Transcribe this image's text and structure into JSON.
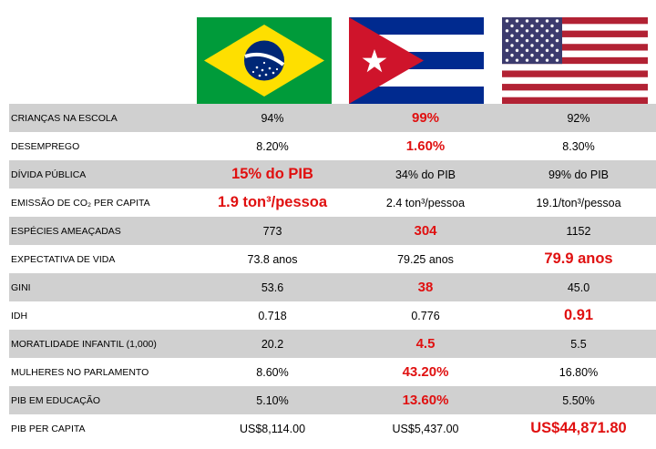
{
  "countries": [
    "Brasil",
    "Cuba",
    "Estados Unidos"
  ],
  "rows": [
    {
      "label": "CRIANÇAS NA ESCOLA",
      "values": [
        "94%",
        "99%",
        "92%"
      ],
      "highlight": 1
    },
    {
      "label": "DESEMPREGO",
      "values": [
        "8.20%",
        "1.60%",
        "8.30%"
      ],
      "highlight": 1
    },
    {
      "label": "DÍVIDA PÚBLICA",
      "values": [
        "15% do PIB",
        "34% do PIB",
        "99% do PIB"
      ],
      "highlight": 0
    },
    {
      "label": "EMISSÃO DE CO₂ PER CAPITA",
      "values": [
        "1.9 ton³/pessoa",
        "2.4 ton³/pessoa",
        "19.1/ton³/pessoa"
      ],
      "highlight": 0
    },
    {
      "label": "ESPÉCIES AMEAÇADAS",
      "values": [
        "773",
        "304",
        "1152"
      ],
      "highlight": 1
    },
    {
      "label": "EXPECTATIVA DE VIDA",
      "values": [
        "73.8 anos",
        "79.25 anos",
        "79.9 anos"
      ],
      "highlight": 2
    },
    {
      "label": "GINI",
      "values": [
        "53.6",
        "38",
        "45.0"
      ],
      "highlight": 1
    },
    {
      "label": "IDH",
      "values": [
        "0.718",
        "0.776",
        "0.91"
      ],
      "highlight": 2
    },
    {
      "label": "MORATLIDADE INFANTIL (1,000)",
      "values": [
        "20.2",
        "4.5",
        "5.5"
      ],
      "highlight": 1
    },
    {
      "label": "MULHERES NO PARLAMENTO",
      "values": [
        "8.60%",
        "43.20%",
        "16.80%"
      ],
      "highlight": 1
    },
    {
      "label": "PIB EM EDUCAÇÃO",
      "values": [
        "5.10%",
        "13.60%",
        "5.50%"
      ],
      "highlight": 1
    },
    {
      "label": "PIB PER CAPITA",
      "values": [
        "US$8,114.00",
        "US$5,437.00",
        "US$44,871.80"
      ],
      "highlight": 2
    }
  ],
  "colors": {
    "highlight": "#e01010",
    "row_shade": "#d0d0d0",
    "brazil_green": "#009b3a",
    "brazil_yellow": "#fedf00",
    "brazil_blue": "#002776",
    "cuba_blue": "#002a8f",
    "cuba_red": "#cf142b",
    "usa_red": "#b22234",
    "usa_blue": "#3c3b6e"
  }
}
